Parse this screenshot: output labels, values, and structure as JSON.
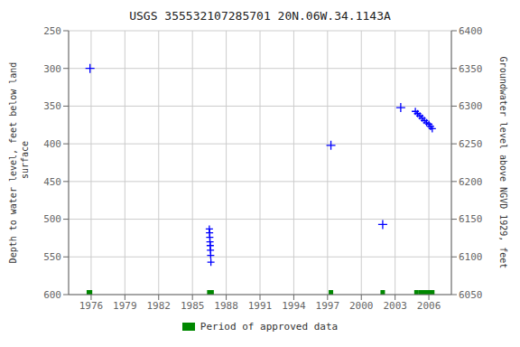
{
  "chart_data": {
    "type": "line",
    "title": "USGS 355532107285701 20N.06W.34.1143A",
    "ylabel": "Depth to water level, feet below land\n surface",
    "y2label": "Groundwater level above NGVD 1929, feet",
    "xlim": [
      1974,
      2008
    ],
    "xticks": [
      1976,
      1979,
      1982,
      1985,
      1988,
      1991,
      1994,
      1997,
      2000,
      2003,
      2006
    ],
    "ylim": [
      600,
      250
    ],
    "yticks": [
      250,
      300,
      350,
      400,
      450,
      500,
      550,
      600
    ],
    "y2lim": [
      6050,
      6400
    ],
    "y2ticks": [
      6050,
      6100,
      6150,
      6200,
      6250,
      6300,
      6350,
      6400
    ],
    "grid": true,
    "series": [
      {
        "type": "scatter",
        "marker": "plus",
        "color": "#0000ff",
        "x": [
          1975.9,
          1997.3,
          2001.9,
          2003.5
        ],
        "values": [
          300,
          402,
          507,
          352
        ]
      },
      {
        "type": "line",
        "line_style": "dashed",
        "marker": "plus",
        "color": "#0000ff",
        "x": [
          1986.5,
          1986.52,
          1986.54,
          1986.56,
          1986.58,
          1986.6,
          1986.62,
          1986.64
        ],
        "values": [
          513,
          518,
          524,
          530,
          535,
          541,
          548,
          557
        ]
      },
      {
        "type": "line",
        "line_style": "solid",
        "marker": "plus",
        "color": "#0000ff",
        "x": [
          2004.8,
          2005.0,
          2005.2,
          2005.4,
          2005.6,
          2005.8,
          2006.0,
          2006.15,
          2006.3
        ],
        "values": [
          357,
          360,
          363,
          366,
          369,
          372,
          374,
          377,
          380
        ]
      },
      {
        "type": "span",
        "name": "Period of approved data",
        "color": "#008800",
        "x": [
          1975.6,
          1986.3,
          1997.1,
          2001.7,
          2004.7,
          2005.1
        ],
        "widths": [
          0.5,
          0.6,
          0.4,
          0.4,
          0.4,
          1.4
        ]
      }
    ]
  }
}
